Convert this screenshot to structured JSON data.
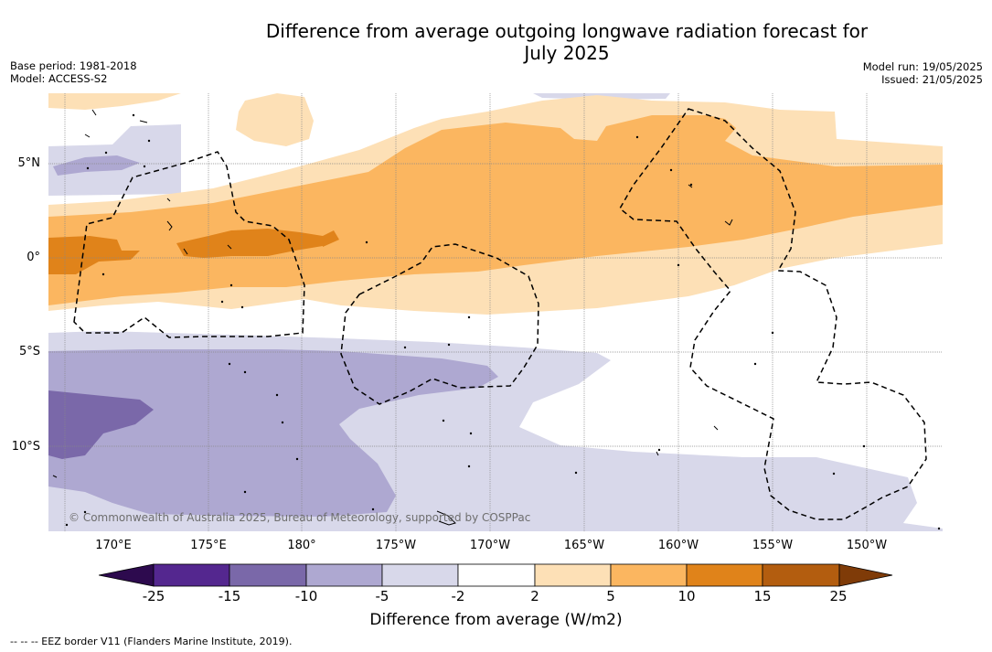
{
  "title_line1": "Difference from average outgoing longwave radiation forecast for",
  "title_line2": "July 2025",
  "meta_left": {
    "line1": "Base period: 1981-2018",
    "line2": "Model: ACCESS-S2"
  },
  "meta_right": {
    "line1": "Model run: 19/05/2025",
    "line2": "Issued: 21/05/2025"
  },
  "attribution": "© Commonwealth of Australia 2025, Bureau of Meteorology, supported by COSPPac",
  "lat_labels": [
    "5°N",
    "0°",
    "5°S",
    "10°S"
  ],
  "lon_labels": [
    "170°E",
    "175°E",
    "180°",
    "175°W",
    "170°W",
    "165°W",
    "160°W",
    "155°W",
    "150°W"
  ],
  "colorbar": {
    "ticks": [
      "-25",
      "-15",
      "-10",
      "-5",
      "-2",
      "2",
      "5",
      "10",
      "15",
      "25"
    ],
    "colors": {
      "extend_low": "#2d0a4e",
      "c1": "#54278f",
      "c2": "#7a68a9",
      "c3": "#aea8d1",
      "c4": "#d8d8ea",
      "c5": "#ffffff",
      "c6": "#fde0b6",
      "c7": "#fbb660",
      "c8": "#e0831a",
      "c9": "#b35d0f",
      "extend_high": "#7f3b08"
    },
    "label": "Difference from average (W/m2)"
  },
  "footer": "--  --  -- EEZ border V11 (Flanders Marine Institute, 2019)."
}
